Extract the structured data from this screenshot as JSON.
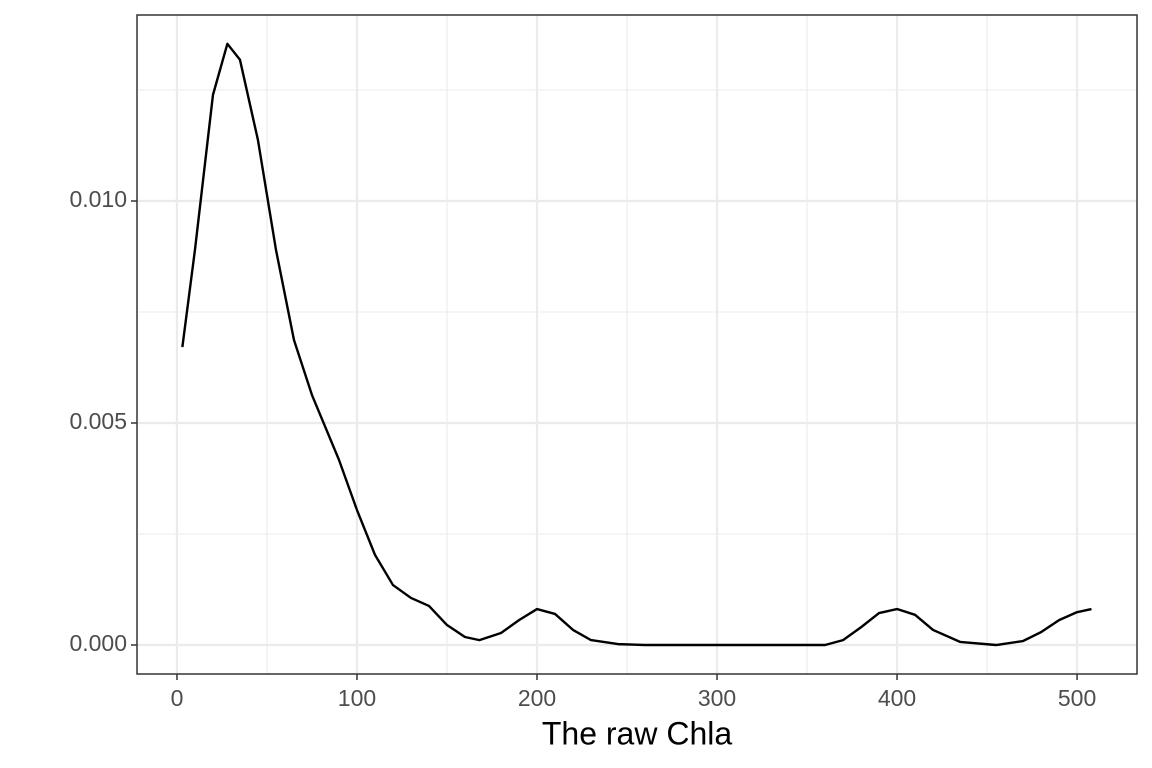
{
  "chart_data": {
    "type": "line",
    "x_label": "The raw Chla",
    "x": [
      3,
      10,
      20,
      28,
      35,
      45,
      55,
      65,
      75,
      90,
      100,
      110,
      120,
      130,
      140,
      150,
      160,
      168,
      180,
      190,
      200,
      210,
      220,
      230,
      245,
      260,
      300,
      360,
      370,
      380,
      390,
      400,
      410,
      420,
      435,
      455,
      470,
      480,
      490,
      500,
      508
    ],
    "series": [
      {
        "color": "#000000",
        "values": [
          0.00671,
          0.0089,
          0.01239,
          0.01354,
          0.01318,
          0.01137,
          0.0089,
          0.00687,
          0.00563,
          0.00417,
          0.00304,
          0.00203,
          0.00135,
          0.00106,
          0.00088,
          0.00045,
          0.00018,
          0.00011,
          0.00027,
          0.00056,
          0.00081,
          0.0007,
          0.00034,
          0.00011,
          2e-05,
          0,
          0,
          0,
          0.00011,
          0.0004,
          0.00072,
          0.00081,
          0.00068,
          0.00034,
          7e-05,
          0,
          9e-05,
          0.00029,
          0.00056,
          0.00074,
          0.00081
        ]
      }
    ],
    "xlim": [
      -22.2,
      533.3
    ],
    "ylim": [
      -0.000653,
      0.014189
    ],
    "xticks": [
      0,
      100,
      200,
      300,
      400,
      500
    ],
    "yticks": [
      {
        "value": 0,
        "label": "0.000"
      },
      {
        "value": 0.005,
        "label": "0.005"
      },
      {
        "value": 0.01,
        "label": "0.010"
      }
    ],
    "x_minor_grid": [
      50,
      150,
      250,
      350,
      450
    ],
    "y_minor_grid": [
      0.0025,
      0.0075,
      0.0125
    ],
    "grid": true
  }
}
